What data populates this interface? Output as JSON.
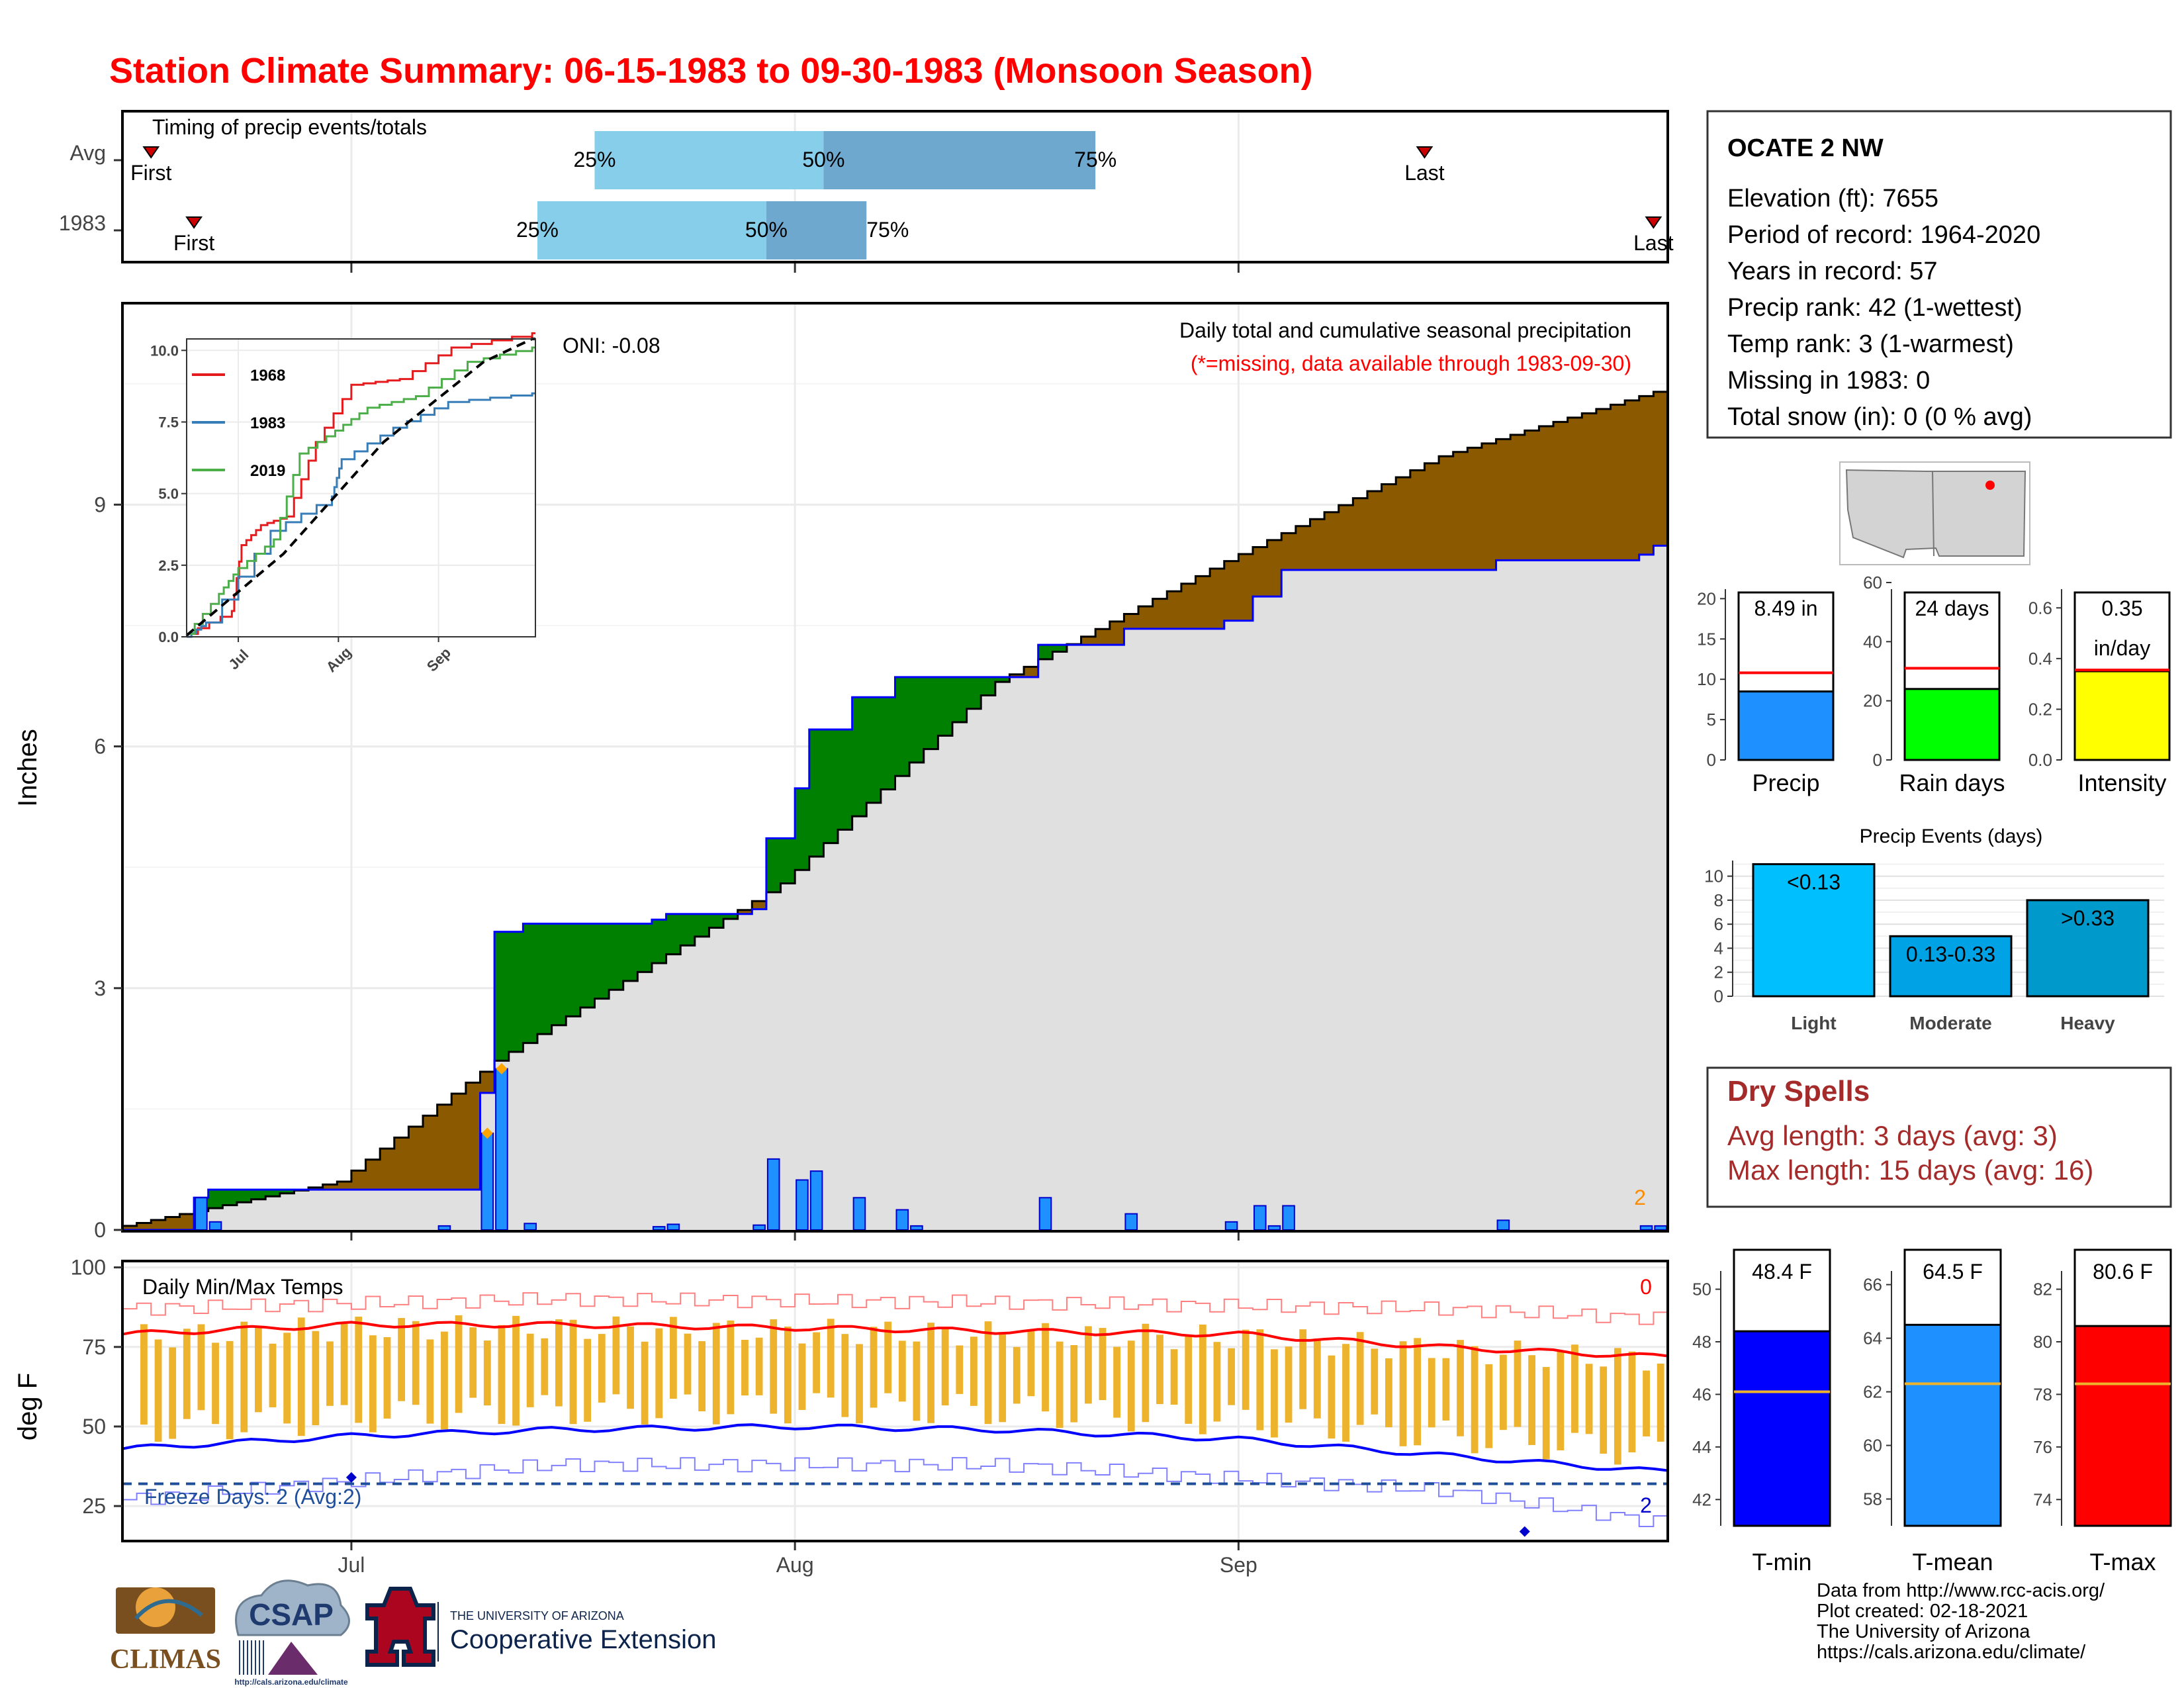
{
  "title": "Station Climate Summary: 06-15-1983 to 09-30-1983 (Monsoon Season)",
  "colors": {
    "title": "#ff0000",
    "avg_box": "#87ceeb",
    "avg_box_dark": "#6fa8cf",
    "precip_bar": "#1e90ff",
    "surplus": "#008000",
    "deficit": "#8b5a00",
    "dry_red": "#a52a2a",
    "tmax_line": "#ff0000",
    "tmin_line": "#0000ff",
    "temp_bar": "#eeb32d",
    "freeze": "#1f4e9a"
  },
  "timing": {
    "label": "Timing of precip events/totals",
    "rows": [
      {
        "label": "Avg",
        "first": "First",
        "last": "Last",
        "p25": "25%",
        "p50": "50%",
        "p75": "75%",
        "first_date": "1983-06-17",
        "p25_date": "1983-07-18",
        "p50_date": "1983-08-03",
        "p75_date": "1983-08-22",
        "last_date": "1983-09-14"
      },
      {
        "label": "1983",
        "first": "First",
        "last": "Last",
        "p25": "25%",
        "p50": "50%",
        "p75": "75%",
        "first_date": "1983-06-20",
        "p25_date": "1983-07-14",
        "p50_date": "1983-07-30",
        "p75_date": "1983-08-06",
        "last_date": "1983-09-30"
      }
    ]
  },
  "precip": {
    "ylabel": "Inches",
    "annotation": "Daily total and cumulative seasonal precipitation",
    "missing_note": "(*=missing, data available through 1983-09-30)",
    "oni": "ONI: -0.08",
    "missing_count": "2",
    "x_ticks": [
      "Jul",
      "Aug",
      "Sep"
    ]
  },
  "inset": {
    "legend": [
      "1968",
      "1983",
      "2019"
    ],
    "colors": [
      "#e41a1c",
      "#377eb8",
      "#4daf4a"
    ],
    "x_ticks": [
      "Jul",
      "Aug",
      "Sep"
    ],
    "y_ticks": [
      "0.0",
      "2.5",
      "5.0",
      "7.5",
      "10.0"
    ]
  },
  "temps": {
    "ylabel": "deg F",
    "label": "Daily Min/Max Temps",
    "max_count": "0",
    "min_count": "2",
    "freeze_label": "Freeze Days: 2 (Avg:2)",
    "x_ticks": [
      "Jul",
      "Aug",
      "Sep"
    ]
  },
  "station": {
    "name": "OCATE 2 NW",
    "lines": [
      "Elevation (ft): 7655",
      "Period of record: 1964-2020",
      "Years in record: 57",
      "Precip rank: 42 (1-wettest)",
      "Temp rank: 3 (1-warmest)",
      "Missing in 1983: 0",
      "Total snow (in): 0 (0 % avg)"
    ]
  },
  "mini_bars": [
    {
      "label": "Precip",
      "value_text": "8.49 in",
      "value": 8.49,
      "avg": 10.8,
      "ymax": 22,
      "ticks": [
        "0",
        "5",
        "10",
        "15",
        "20"
      ],
      "color": "#1e90ff"
    },
    {
      "label": "Rain days",
      "value_text": "24 days",
      "value": 24,
      "avg": 31,
      "ymax": 60,
      "ticks": [
        "0",
        "20",
        "40",
        "60"
      ],
      "color": "#00ff00"
    },
    {
      "label": "Intensity",
      "value_text": "0.35",
      "value_text2": "in/day",
      "value": 0.35,
      "avg": 0.355,
      "ymax": 0.7,
      "ticks": [
        "0.0",
        "0.2",
        "0.4",
        "0.6"
      ],
      "color": "#ffff00"
    }
  ],
  "events": {
    "title": "Precip Events (days)",
    "categories": [
      "Light",
      "Moderate",
      "Heavy"
    ],
    "labels": [
      "<0.13",
      "0.13-0.33",
      ">0.33"
    ],
    "values": [
      11,
      5,
      8
    ],
    "colors": [
      "#00bfff",
      "#00a2e6",
      "#0099cc"
    ],
    "ticks": [
      "0",
      "2",
      "4",
      "6",
      "8",
      "10"
    ]
  },
  "dry_spells": {
    "title": "Dry Spells",
    "avg_line": "Avg length: 3 days (avg: 3)",
    "max_line": "Max length: 15 days (avg: 16)"
  },
  "temp_bars": [
    {
      "label": "T-min",
      "value_text": "48.4 F",
      "value": 48.4,
      "avg": 46.1,
      "ymin": 41,
      "ymax": 51.5,
      "ticks": [
        "42",
        "44",
        "46",
        "48",
        "50"
      ],
      "color": "#0000ff"
    },
    {
      "label": "T-mean",
      "value_text": "64.5 F",
      "value": 64.5,
      "avg": 62.3,
      "ymin": 57,
      "ymax": 67.3,
      "ticks": [
        "58",
        "60",
        "62",
        "64",
        "66"
      ],
      "color": "#1e90ff"
    },
    {
      "label": "T-max",
      "value_text": "80.6 F",
      "value": 80.6,
      "avg": 78.4,
      "ymin": 73,
      "ymax": 83.5,
      "ticks": [
        "74",
        "76",
        "78",
        "80",
        "82"
      ],
      "color": "#ff0000"
    }
  ],
  "logos": {
    "climas": "CLIMAS",
    "csap": "CSAP",
    "csap_url": "http://cals.arizona.edu/climate",
    "ua_line1": "THE UNIVERSITY OF ARIZONA",
    "ua_line2": "Cooperative Extension"
  },
  "credits": [
    "Data from http://www.rcc-acis.org/",
    "Plot created: 02-18-2021",
    "The University of Arizona",
    "https://cals.arizona.edu/climate/"
  ],
  "chart_data": [
    {
      "type": "bar",
      "name": "timing",
      "categories": [
        "Avg",
        "1983"
      ],
      "series": [
        {
          "name": "First",
          "values": [
            "1983-06-17",
            "1983-06-20"
          ]
        },
        {
          "name": "25%",
          "values": [
            "1983-07-18",
            "1983-07-14"
          ]
        },
        {
          "name": "50%",
          "values": [
            "1983-08-03",
            "1983-07-30"
          ]
        },
        {
          "name": "75%",
          "values": [
            "1983-08-22",
            "1983-08-06"
          ]
        },
        {
          "name": "Last",
          "values": [
            "1983-09-14",
            "1983-09-30"
          ]
        }
      ]
    },
    {
      "type": "area",
      "name": "cumulative_precip",
      "start_date": "1983-06-15",
      "end_date": "1983-09-30",
      "ylabel": "Inches",
      "ylim": [
        0,
        11.5
      ],
      "x_ticks": [
        "Jul",
        "Aug",
        "Sep"
      ],
      "y_ticks": [
        0,
        3,
        6,
        9
      ],
      "daily_precip": [
        {
          "date": "1983-06-20",
          "value": 0.4
        },
        {
          "date": "1983-06-21",
          "value": 0.1
        },
        {
          "date": "1983-07-07",
          "value": 0.05
        },
        {
          "date": "1983-07-10",
          "value": 1.2
        },
        {
          "date": "1983-07-11",
          "value": 2.0
        },
        {
          "date": "1983-07-13",
          "value": 0.08
        },
        {
          "date": "1983-07-22",
          "value": 0.04
        },
        {
          "date": "1983-07-23",
          "value": 0.07
        },
        {
          "date": "1983-07-29",
          "value": 0.06
        },
        {
          "date": "1983-07-30",
          "value": 0.88
        },
        {
          "date": "1983-08-01",
          "value": 0.62
        },
        {
          "date": "1983-08-02",
          "value": 0.73
        },
        {
          "date": "1983-08-05",
          "value": 0.4
        },
        {
          "date": "1983-08-08",
          "value": 0.25
        },
        {
          "date": "1983-08-09",
          "value": 0.05
        },
        {
          "date": "1983-08-18",
          "value": 0.4
        },
        {
          "date": "1983-08-24",
          "value": 0.2
        },
        {
          "date": "1983-08-31",
          "value": 0.1
        },
        {
          "date": "1983-09-02",
          "value": 0.3
        },
        {
          "date": "1983-09-03",
          "value": 0.05
        },
        {
          "date": "1983-09-04",
          "value": 0.3
        },
        {
          "date": "1983-09-19",
          "value": 0.12
        },
        {
          "date": "1983-09-29",
          "value": 0.05
        },
        {
          "date": "1983-09-30",
          "value": 0.05
        }
      ],
      "avg_cumulative": {
        "dates": [
          "1983-06-15",
          "1983-06-30",
          "1983-07-11",
          "1983-07-31",
          "1983-08-15",
          "1983-08-31",
          "1983-09-15",
          "1983-09-30"
        ],
        "values": [
          0.05,
          0.6,
          2.1,
          4.3,
          6.8,
          8.3,
          9.6,
          10.4
        ]
      },
      "obs_cumulative": {
        "dates": [
          "1983-06-15",
          "1983-06-20",
          "1983-06-21",
          "1983-07-10",
          "1983-07-11",
          "1983-07-13",
          "1983-07-22",
          "1983-07-23",
          "1983-07-29",
          "1983-07-30",
          "1983-08-01",
          "1983-08-02",
          "1983-08-05",
          "1983-08-08",
          "1983-08-18",
          "1983-08-24",
          "1983-08-31",
          "1983-09-02",
          "1983-09-04",
          "1983-09-19",
          "1983-09-29",
          "1983-09-30"
        ],
        "values": [
          0,
          0.4,
          0.5,
          1.7,
          3.7,
          3.8,
          3.85,
          3.92,
          3.98,
          4.86,
          5.48,
          6.21,
          6.61,
          6.86,
          7.26,
          7.46,
          7.56,
          7.86,
          8.19,
          8.31,
          8.38,
          8.49
        ]
      },
      "orange_points": [
        {
          "date": "1983-07-10",
          "value": 1.2
        },
        {
          "date": "1983-07-11",
          "value": 2.0
        }
      ]
    },
    {
      "type": "line",
      "name": "inset_cumulative",
      "x_ticks": [
        "Jul",
        "Aug",
        "Sep"
      ],
      "ylim": [
        0,
        10
      ],
      "series": [
        {
          "name": "1968",
          "dates": [
            "1983-06-15",
            "1983-06-29",
            "1983-07-02",
            "1983-07-08",
            "1983-07-16",
            "1983-07-25",
            "1983-08-05",
            "1983-08-20",
            "1983-09-05",
            "1983-09-30"
          ],
          "values": [
            0.1,
            0.9,
            3.2,
            3.9,
            4.2,
            6.8,
            8.8,
            9.0,
            10.1,
            10.6
          ]
        },
        {
          "name": "1983",
          "dates": [
            "1983-06-15",
            "1983-06-21",
            "1983-07-11",
            "1983-07-30",
            "1983-08-02",
            "1983-08-18",
            "1983-09-04",
            "1983-09-30"
          ],
          "values": [
            0,
            0.5,
            3.7,
            4.9,
            6.2,
            7.3,
            8.2,
            8.5
          ]
        },
        {
          "name": "2019",
          "dates": [
            "1983-06-15",
            "1983-06-25",
            "1983-07-01",
            "1983-07-12",
            "1983-07-20",
            "1983-07-31",
            "1983-08-10",
            "1983-08-25",
            "1983-09-10",
            "1983-09-30"
          ],
          "values": [
            0.1,
            1.5,
            2.4,
            3.4,
            6.4,
            7.2,
            8.0,
            8.4,
            9.6,
            10.1
          ]
        },
        {
          "name": "Avg",
          "dates": [
            "1983-06-15",
            "1983-07-15",
            "1983-08-15",
            "1983-09-15",
            "1983-09-30"
          ],
          "values": [
            0.05,
            2.9,
            6.8,
            9.6,
            10.4
          ]
        }
      ]
    },
    {
      "type": "line",
      "name": "daily_temps",
      "ylabel": "deg F",
      "ylim": [
        14,
        102
      ],
      "y_ticks": [
        25,
        50,
        75,
        100
      ],
      "x_ticks": [
        "Jul",
        "Aug",
        "Sep"
      ],
      "freeze_threshold": 32,
      "series": [
        {
          "name": "avg_max",
          "dates": [
            "1983-06-15",
            "1983-07-01",
            "1983-07-15",
            "1983-08-01",
            "1983-08-15",
            "1983-09-01",
            "1983-09-15",
            "1983-09-30"
          ],
          "values": [
            79,
            82,
            82,
            81,
            80,
            79,
            75,
            72
          ]
        },
        {
          "name": "avg_min",
          "dates": [
            "1983-06-15",
            "1983-07-01",
            "1983-07-15",
            "1983-08-01",
            "1983-08-15",
            "1983-09-01",
            "1983-09-15",
            "1983-09-30"
          ],
          "values": [
            43,
            47,
            49,
            50,
            49,
            46,
            41,
            36
          ]
        },
        {
          "name": "record_max",
          "dates": [
            "1983-06-15",
            "1983-07-15",
            "1983-08-15",
            "1983-09-15",
            "1983-09-30"
          ],
          "values": [
            87,
            90,
            89,
            87,
            84
          ]
        },
        {
          "name": "record_min",
          "dates": [
            "1983-06-15",
            "1983-07-15",
            "1983-08-15",
            "1983-09-15",
            "1983-09-30"
          ],
          "values": [
            27,
            38,
            38,
            30,
            20
          ]
        }
      ],
      "daily_range": {
        "tmax_mean": 80.6,
        "tmin_mean": 48.4
      }
    },
    {
      "type": "bar",
      "name": "season_totals",
      "categories": [
        "Precip",
        "Rain days",
        "Intensity"
      ],
      "values": [
        8.49,
        24,
        0.35
      ]
    },
    {
      "type": "bar",
      "name": "precip_events",
      "categories": [
        "Light",
        "Moderate",
        "Heavy"
      ],
      "values": [
        11,
        5,
        8
      ]
    },
    {
      "type": "bar",
      "name": "season_temps",
      "categories": [
        "T-min",
        "T-mean",
        "T-max"
      ],
      "values": [
        48.4,
        64.5,
        80.6
      ]
    }
  ]
}
